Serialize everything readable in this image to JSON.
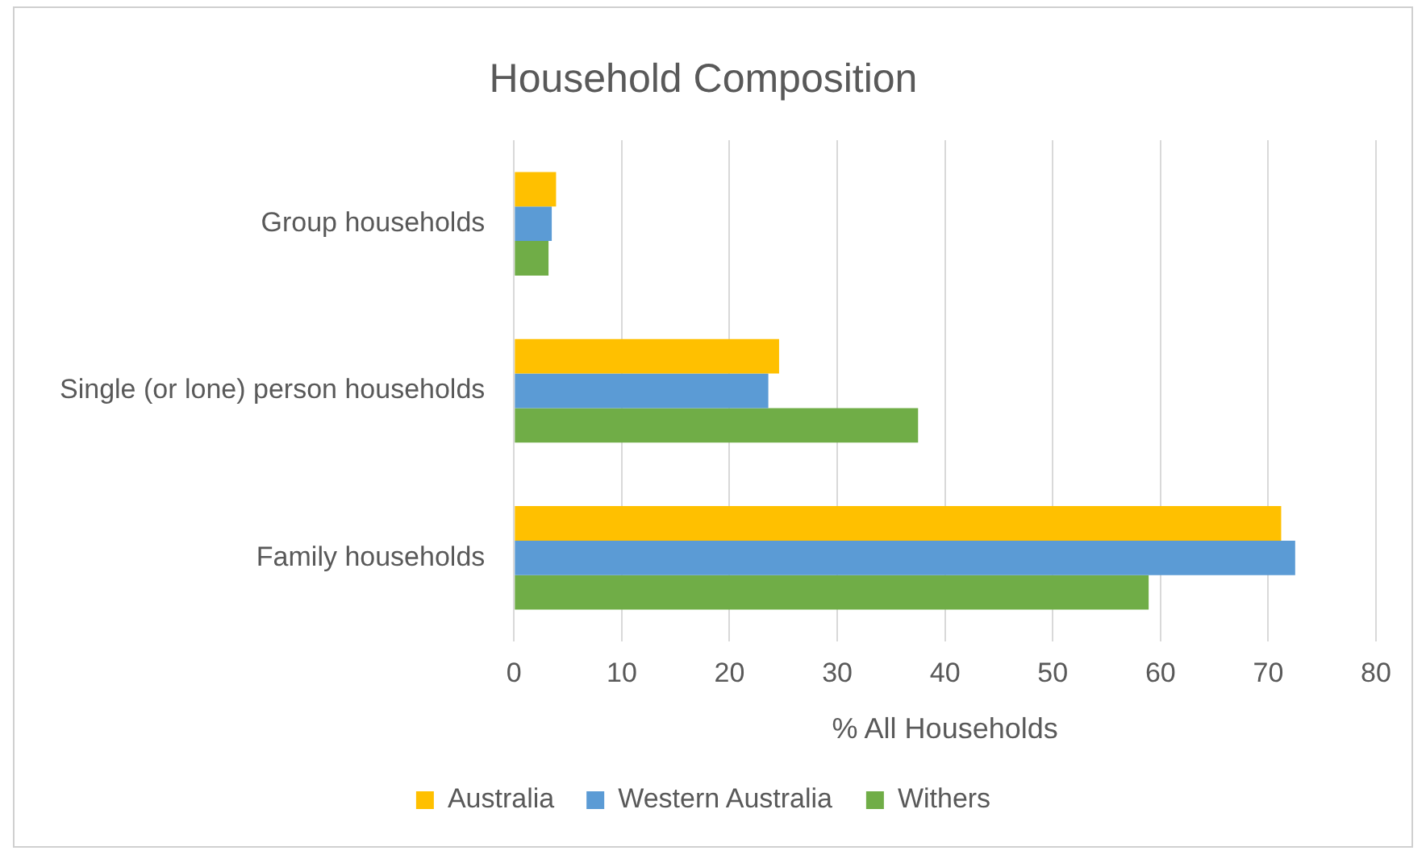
{
  "chart_data": {
    "type": "bar",
    "orientation": "horizontal",
    "title": "Household Composition",
    "xlabel": "% All Households",
    "categories": [
      "Group households",
      "Single (or lone) person households",
      "Family households"
    ],
    "series": [
      {
        "name": "Australia",
        "color": "#ffc000",
        "values": [
          3.9,
          24.6,
          71.2
        ]
      },
      {
        "name": "Western Australia",
        "color": "#5b9bd5",
        "values": [
          3.5,
          23.6,
          72.5
        ]
      },
      {
        "name": "Withers",
        "color": "#70ad47",
        "values": [
          3.2,
          37.5,
          58.9
        ]
      }
    ],
    "xlim": [
      0,
      80
    ],
    "xticks": [
      0,
      10,
      20,
      30,
      40,
      50,
      60,
      70,
      80
    ],
    "grid": "x",
    "legend": "bottom"
  }
}
